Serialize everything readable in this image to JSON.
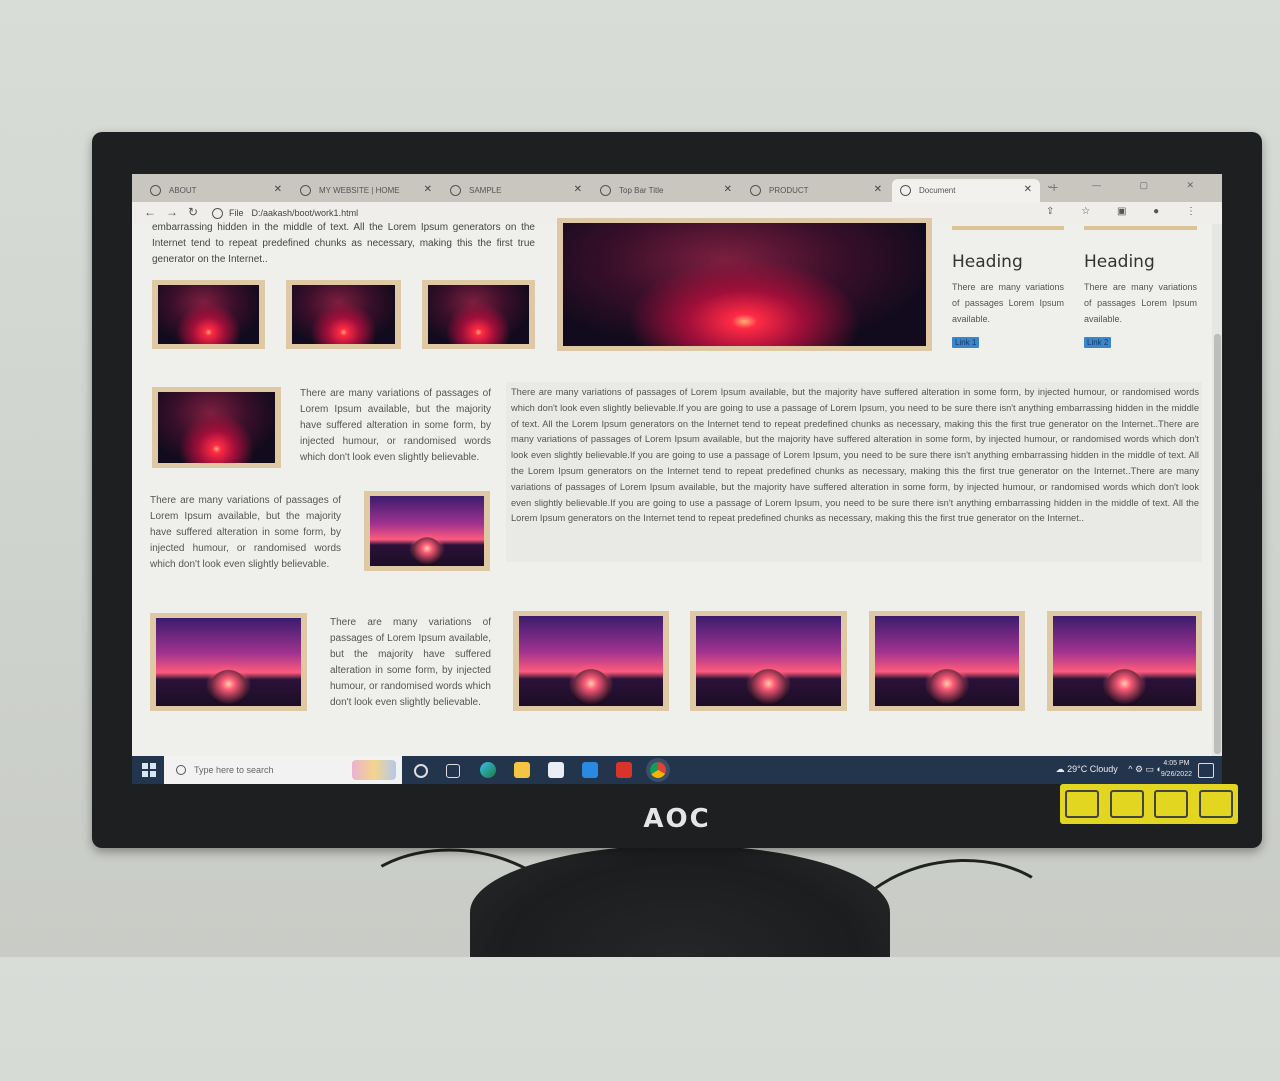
{
  "brand": "AOC",
  "browser": {
    "tabs": [
      {
        "label": "ABOUT",
        "active": false
      },
      {
        "label": "MY WEBSITE | HOME",
        "active": false
      },
      {
        "label": "SAMPLE",
        "active": false
      },
      {
        "label": "Top Bar Title",
        "active": false
      },
      {
        "label": "PRODUCT",
        "active": false
      },
      {
        "label": "Document",
        "active": true
      }
    ],
    "new_tab": "+",
    "url_prefix": "File",
    "url": "D:/aakash/boot/work1.html"
  },
  "page": {
    "top_text": "embarrassing hidden in the middle of text. All the Lorem Ipsum generators on the Internet tend to repeat predefined chunks as necessary, making this the first true generator on the Internet..",
    "cards": [
      {
        "heading": "Heading",
        "text": "There are many variations of passages Lorem Ipsum available.",
        "link": "Link 1"
      },
      {
        "heading": "Heading",
        "text": "There are many variations of passages Lorem Ipsum available.",
        "link": "Link 2"
      }
    ],
    "short_text": "There are many variations of passages of Lorem Ipsum available, but the majority have suffered alteration in some form, by injected humour, or randomised words which don't look even slightly believable.",
    "long_text": "There are many variations of passages of Lorem Ipsum available, but the majority have suffered alteration in some form, by injected humour, or randomised words which don't look even slightly believable.If you are going to use a passage of Lorem Ipsum, you need to be sure there isn't anything embarrassing hidden in the middle of text. All the Lorem Ipsum generators on the Internet tend to repeat predefined chunks as necessary, making this the first true generator on the Internet..There are many variations of passages of Lorem Ipsum available, but the majority have suffered alteration in some form, by injected humour, or randomised words which don't look even slightly believable.If you are going to use a passage of Lorem Ipsum, you need to be sure there isn't anything embarrassing hidden in the middle of text. All the Lorem Ipsum generators on the Internet tend to repeat predefined chunks as necessary, making this the first true generator on the Internet..There are many variations of passages of Lorem Ipsum available, but the majority have suffered alteration in some form, by injected humour, or randomised words which don't look even slightly believable.If you are going to use a passage of Lorem Ipsum, you need to be sure there isn't anything embarrassing hidden in the middle of text. All the Lorem Ipsum generators on the Internet tend to repeat predefined chunks as necessary, making this the first true generator on the Internet.."
  },
  "taskbar": {
    "search_placeholder": "Type here to search",
    "weather": "29°C  Cloudy",
    "time": "4:05 PM",
    "date": "9/26/2022"
  }
}
